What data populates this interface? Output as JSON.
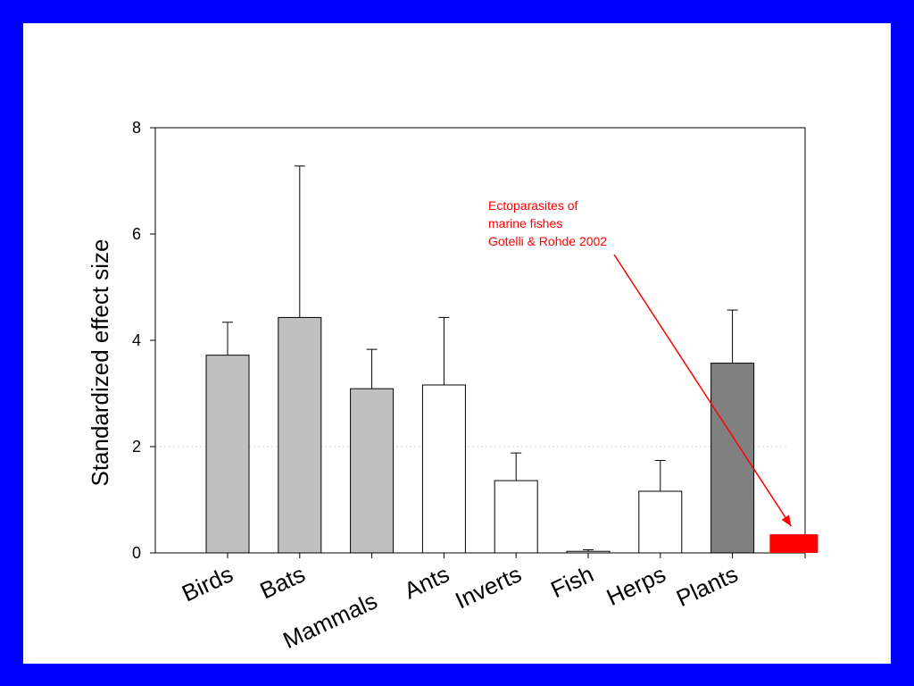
{
  "chart_data": {
    "type": "bar",
    "ylabel": "Standardized effect size",
    "ylim": [
      0,
      8
    ],
    "yticks": [
      "0",
      "2",
      "4",
      "6",
      "8"
    ],
    "reference_line_y": 2,
    "categories": [
      "Birds",
      "Bats",
      "Mammals",
      "Ants",
      "Inverts",
      "Fish",
      "Herps",
      "Plants"
    ],
    "values": [
      3.72,
      4.43,
      3.09,
      3.16,
      1.36,
      0.03,
      1.16,
      3.57
    ],
    "errors": [
      0.62,
      2.85,
      0.74,
      1.27,
      0.52,
      0.03,
      0.58,
      1.0
    ],
    "fills": [
      "#c0c0c0",
      "#c0c0c0",
      "#c0c0c0",
      "#ffffff",
      "#ffffff",
      "#ffffff",
      "#ffffff",
      "#808080"
    ],
    "highlight": {
      "value": 0.35,
      "color": "#ff0000",
      "annotation": [
        "Ectoparasites of",
        "marine fishes",
        "Gotelli & Rohde 2002"
      ]
    }
  }
}
